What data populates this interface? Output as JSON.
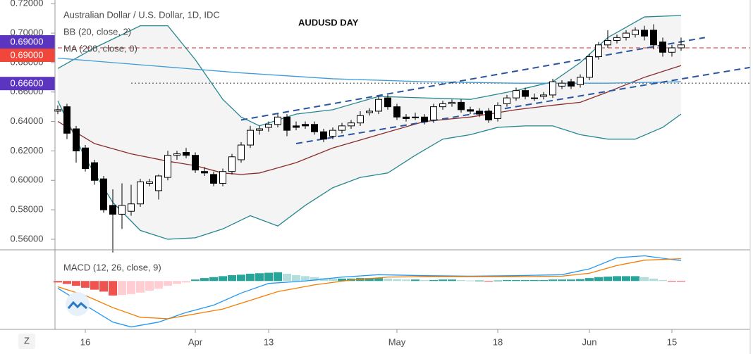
{
  "chart_data": [
    {
      "type": "candlestick",
      "title": "Australian Dollar / U.S. Dollar, 1D, IDC",
      "annotation": "AUDUSD DAY",
      "legend": [
        "BB (20, close, 2)",
        "MA (200, close, 0)"
      ],
      "open": [
        0.647,
        0.65,
        0.635,
        0.622,
        0.612,
        0.601,
        0.583,
        0.577,
        0.579,
        0.584,
        0.598,
        0.593,
        0.602,
        0.617,
        0.619,
        0.617,
        0.606,
        0.604,
        0.598,
        0.606,
        0.614,
        0.624,
        0.634,
        0.636,
        0.638,
        0.643,
        0.637,
        0.638,
        0.638,
        0.633,
        0.63,
        0.634,
        0.637,
        0.639,
        0.646,
        0.647,
        0.656,
        0.65,
        0.643,
        0.643,
        0.643,
        0.641,
        0.65,
        0.652,
        0.653,
        0.648,
        0.647,
        0.647,
        0.642,
        0.652,
        0.656,
        0.661,
        0.656,
        0.657,
        0.658,
        0.664,
        0.667,
        0.665,
        0.67,
        0.684,
        0.692,
        0.695,
        0.697,
        0.699,
        0.702,
        0.702,
        0.694,
        0.687,
        0.69
      ],
      "high": [
        0.651,
        0.652,
        0.637,
        0.624,
        0.614,
        0.603,
        0.594,
        0.598,
        0.597,
        0.601,
        0.601,
        0.604,
        0.62,
        0.62,
        0.622,
        0.619,
        0.609,
        0.606,
        0.608,
        0.618,
        0.626,
        0.637,
        0.637,
        0.64,
        0.645,
        0.645,
        0.64,
        0.64,
        0.64,
        0.635,
        0.636,
        0.639,
        0.641,
        0.647,
        0.649,
        0.657,
        0.658,
        0.652,
        0.645,
        0.646,
        0.645,
        0.652,
        0.654,
        0.655,
        0.655,
        0.65,
        0.649,
        0.649,
        0.653,
        0.658,
        0.663,
        0.663,
        0.659,
        0.66,
        0.669,
        0.668,
        0.669,
        0.672,
        0.686,
        0.694,
        0.702,
        0.699,
        0.702,
        0.704,
        0.705,
        0.706,
        0.697,
        0.692,
        0.697
      ],
      "low": [
        0.645,
        0.628,
        0.612,
        0.606,
        0.597,
        0.578,
        0.551,
        0.567,
        0.576,
        0.582,
        0.596,
        0.587,
        0.6,
        0.614,
        0.615,
        0.605,
        0.603,
        0.596,
        0.596,
        0.604,
        0.612,
        0.622,
        0.631,
        0.633,
        0.636,
        0.63,
        0.634,
        0.635,
        0.631,
        0.626,
        0.628,
        0.632,
        0.635,
        0.637,
        0.644,
        0.645,
        0.648,
        0.641,
        0.64,
        0.641,
        0.638,
        0.639,
        0.648,
        0.65,
        0.646,
        0.645,
        0.643,
        0.639,
        0.64,
        0.65,
        0.654,
        0.655,
        0.654,
        0.655,
        0.656,
        0.662,
        0.662,
        0.663,
        0.668,
        0.682,
        0.69,
        0.693,
        0.695,
        0.697,
        0.695,
        0.689,
        0.684,
        0.684,
        0.688
      ],
      "close": [
        0.648,
        0.632,
        0.62,
        0.608,
        0.6,
        0.58,
        0.577,
        0.583,
        0.584,
        0.599,
        0.599,
        0.603,
        0.617,
        0.618,
        0.617,
        0.607,
        0.605,
        0.598,
        0.606,
        0.616,
        0.624,
        0.634,
        0.635,
        0.638,
        0.643,
        0.634,
        0.636,
        0.637,
        0.633,
        0.628,
        0.634,
        0.637,
        0.639,
        0.644,
        0.647,
        0.655,
        0.65,
        0.643,
        0.642,
        0.643,
        0.64,
        0.65,
        0.652,
        0.653,
        0.648,
        0.647,
        0.645,
        0.641,
        0.651,
        0.656,
        0.661,
        0.657,
        0.656,
        0.658,
        0.667,
        0.666,
        0.664,
        0.67,
        0.684,
        0.692,
        0.695,
        0.697,
        0.7,
        0.702,
        0.698,
        0.692,
        0.687,
        0.69,
        0.692
      ],
      "xticks": [
        {
          "value": 3,
          "label": "16"
        },
        {
          "value": 15,
          "label": "Apr"
        },
        {
          "value": 23,
          "label": "13"
        },
        {
          "value": 37,
          "label": "May"
        },
        {
          "value": 48,
          "label": "18"
        },
        {
          "value": 58,
          "label": "Jun"
        },
        {
          "value": 67,
          "label": "15"
        }
      ],
      "ylim": [
        0.5528,
        0.7225
      ],
      "yticks": [
        {
          "value": 0.72,
          "label": "0.72000"
        },
        {
          "value": 0.7,
          "label": "0.70000"
        },
        {
          "value": 0.68,
          "label": "0.68000"
        },
        {
          "value": 0.66,
          "label": "0.66000"
        },
        {
          "value": 0.64,
          "label": "0.64000"
        },
        {
          "value": 0.62,
          "label": "0.62000"
        },
        {
          "value": 0.6,
          "label": "0.60000"
        },
        {
          "value": 0.58,
          "label": "0.58000"
        },
        {
          "value": 0.56,
          "label": "0.56000"
        }
      ],
      "up_color": "#ffffff",
      "down_color": "#000000",
      "series": [
        {
          "color": "#26868f",
          "x": [
            0,
            4,
            9,
            12,
            15,
            18,
            20,
            22,
            26,
            30,
            35,
            40,
            45,
            50,
            54,
            57,
            60,
            64,
            68
          ],
          "values": [
            0.676,
            0.69,
            0.705,
            0.705,
            0.682,
            0.655,
            0.643,
            0.637,
            0.645,
            0.648,
            0.657,
            0.656,
            0.655,
            0.661,
            0.667,
            0.68,
            0.697,
            0.711,
            0.712
          ]
        },
        {
          "color": "#26868f",
          "x": [
            0,
            3,
            6,
            9,
            12,
            15,
            18,
            21,
            24,
            27,
            30,
            33,
            36,
            39,
            42,
            45,
            48,
            51,
            54,
            57,
            60,
            63,
            66,
            68
          ],
          "values": [
            0.654,
            0.615,
            0.585,
            0.566,
            0.56,
            0.561,
            0.567,
            0.576,
            0.569,
            0.583,
            0.595,
            0.602,
            0.605,
            0.617,
            0.628,
            0.631,
            0.636,
            0.637,
            0.637,
            0.631,
            0.628,
            0.628,
            0.636,
            0.645
          ]
        },
        {
          "color": "#8b2c2c",
          "x": [
            0,
            4,
            8,
            12,
            15,
            18,
            20,
            22,
            26,
            30,
            35,
            40,
            45,
            50,
            54,
            57,
            60,
            64,
            68
          ],
          "values": [
            0.64,
            0.625,
            0.618,
            0.613,
            0.61,
            0.605,
            0.604,
            0.605,
            0.612,
            0.622,
            0.631,
            0.64,
            0.643,
            0.648,
            0.651,
            0.653,
            0.66,
            0.67,
            0.678
          ]
        },
        {
          "color": "#3d9bd8",
          "x": [
            0,
            10,
            20,
            30,
            40,
            50,
            60,
            68
          ],
          "values": [
            0.683,
            0.678,
            0.673,
            0.669,
            0.667,
            0.666,
            0.666,
            0.667
          ]
        }
      ],
      "trendlines": [
        {
          "color": "#2a55a0",
          "x": [
            20,
            70.6
          ],
          "values": [
            0.641,
            0.697
          ]
        },
        {
          "color": "#2a55a0",
          "x": [
            26,
            75.8
          ],
          "values": [
            0.625,
            0.677
          ]
        }
      ],
      "price_labels": [
        {
          "value": 0.69,
          "label": "0.69000",
          "color": "#5b35c0"
        },
        {
          "value": 0.69,
          "label": "0.69000",
          "color": "#f0473a"
        },
        {
          "value": 0.666,
          "label": "0.66600",
          "color": "#5b35c0"
        }
      ],
      "reference_lines": [
        {
          "value": 0.69,
          "color": "#e05050",
          "start": 0
        },
        {
          "value": 0.666,
          "color": "#555555",
          "start": 8
        }
      ]
    },
    {
      "type": "macd",
      "legend": "MACD (12, 26, close, 9)",
      "ylim": [
        -0.01,
        0.006
      ],
      "histogram": [
        -0.0003,
        -0.0006,
        -0.001,
        -0.0014,
        -0.0018,
        -0.0022,
        -0.003,
        -0.0029,
        -0.0027,
        -0.0024,
        -0.002,
        -0.0016,
        -0.001,
        -0.0006,
        -0.0003,
        0.0003,
        0.0006,
        0.0008,
        0.001,
        0.0012,
        0.0013,
        0.0015,
        0.0016,
        0.0017,
        0.0018,
        0.0015,
        0.0012,
        0.001,
        0.0008,
        0.0006,
        0.0005,
        0.0005,
        0.0005,
        0.0006,
        0.0006,
        0.0006,
        0.0005,
        0.0004,
        0.0003,
        0.0003,
        0.0002,
        0.0002,
        0.0003,
        0.0003,
        0.0002,
        0.0001,
        0.0001,
        -0.0001,
        0.0001,
        0.0002,
        0.0002,
        0.0002,
        0.0002,
        0.0002,
        0.0003,
        0.0003,
        0.0003,
        0.0004,
        0.0006,
        0.0008,
        0.0009,
        0.001,
        0.001,
        0.001,
        0.0008,
        0.0005,
        0.0002,
        -0.0001,
        -0.0001
      ],
      "hist_colors": {
        "up_rising": "#26a69a",
        "up_falling": "#b2dfdb",
        "down_falling": "#ef5350",
        "down_rising": "#ffcdd2"
      },
      "series": [
        {
          "color": "#2196f3",
          "x": [
            0,
            3,
            6,
            8,
            11,
            14,
            17,
            20,
            23,
            27,
            31,
            35,
            40,
            45,
            50,
            55,
            58,
            61,
            64,
            68
          ],
          "values": [
            -0.0015,
            -0.005,
            -0.0085,
            -0.0095,
            -0.0085,
            -0.0065,
            -0.005,
            -0.0025,
            -0.0005,
            0.0,
            0.0008,
            0.0013,
            0.0011,
            0.001,
            0.0011,
            0.0013,
            0.0025,
            0.0048,
            0.0052,
            0.0042
          ]
        },
        {
          "color": "#f57c00",
          "x": [
            0,
            3,
            6,
            9,
            12,
            15,
            18,
            21,
            24,
            28,
            32,
            36,
            40,
            45,
            50,
            55,
            58,
            61,
            64,
            68
          ],
          "values": [
            -0.0012,
            -0.003,
            -0.0055,
            -0.0075,
            -0.0078,
            -0.0068,
            -0.0058,
            -0.004,
            -0.0022,
            -0.0008,
            0.0002,
            0.0008,
            0.0009,
            0.0009,
            0.0009,
            0.001,
            0.0016,
            0.0032,
            0.0043,
            0.0046
          ]
        }
      ]
    },
    {
      "type": "toolbar",
      "button": "Z"
    }
  ]
}
